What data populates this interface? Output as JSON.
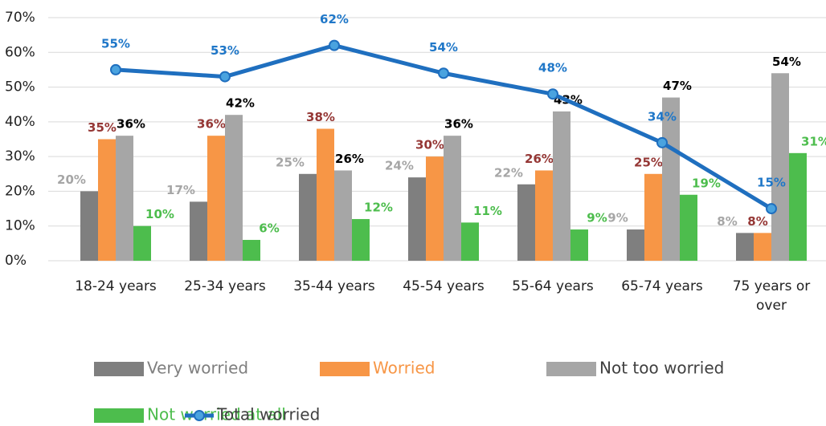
{
  "chart_data": {
    "type": "bar",
    "categories": [
      "18-24 years",
      "25-34 years",
      "35-44 years",
      "45-54 years",
      "55-64 years",
      "65-74 years",
      "75 years or over"
    ],
    "series": [
      {
        "name": "Very worried",
        "color": "#7f7f7f",
        "label_color": "#a6a6a6",
        "values": [
          20,
          17,
          25,
          24,
          22,
          9,
          8
        ],
        "value_labels": [
          "20%",
          "17%",
          "25%",
          "24%",
          "22%",
          "9%",
          "8%"
        ]
      },
      {
        "name": "Worried",
        "color": "#f79646",
        "label_color": "#953735",
        "values": [
          35,
          36,
          38,
          30,
          26,
          25,
          8
        ],
        "value_labels": [
          "35%",
          "36%",
          "38%",
          "30%",
          "26%",
          "25%",
          "8%"
        ]
      },
      {
        "name": "Not too worried",
        "color": "#a6a6a6",
        "label_color": "#000000",
        "values": [
          36,
          42,
          26,
          36,
          43,
          47,
          54
        ],
        "value_labels": [
          "36%",
          "42%",
          "26%",
          "36%",
          "43%",
          "47%",
          "54%"
        ]
      },
      {
        "name": "Not worried at all",
        "color": "#4dbd4d",
        "label_color": "#4dbd4d",
        "values": [
          10,
          6,
          12,
          11,
          9,
          19,
          31
        ],
        "value_labels": [
          "10%",
          "6%",
          "12%",
          "11%",
          "9%",
          "19%",
          "31%"
        ]
      },
      {
        "name": "Total worried",
        "type": "line",
        "color": "#1f6fbf",
        "label_color": "#1f77c8",
        "values": [
          55,
          53,
          62,
          54,
          48,
          34,
          15
        ],
        "value_labels": [
          "55%",
          "53%",
          "62%",
          "54%",
          "48%",
          "34%",
          "15%"
        ]
      }
    ],
    "ylim": [
      0,
      70
    ],
    "yticks": [
      {
        "value": 0,
        "label": "0%"
      },
      {
        "value": 10,
        "label": "10%"
      },
      {
        "value": 20,
        "label": "20%"
      },
      {
        "value": 30,
        "label": "30%"
      },
      {
        "value": 40,
        "label": "40%"
      },
      {
        "value": 50,
        "label": "50%"
      },
      {
        "value": 60,
        "label": "60%"
      },
      {
        "value": 70,
        "label": "70%"
      }
    ],
    "grid": true,
    "legend": "bottom"
  }
}
